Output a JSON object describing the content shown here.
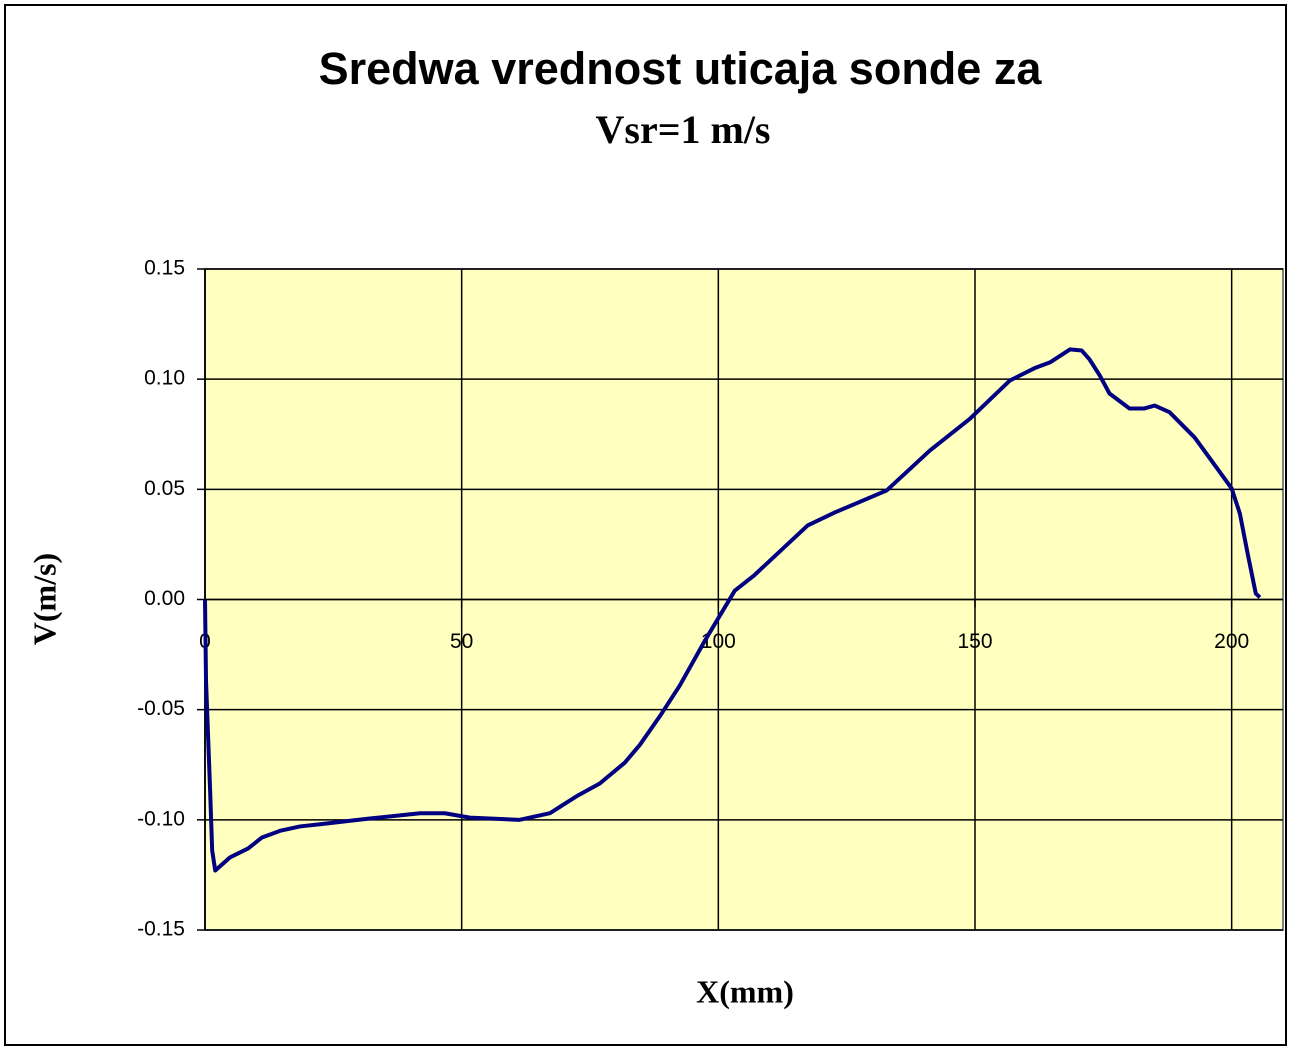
{
  "chart_data": {
    "type": "line",
    "title": "Sredwa vrednost uticaja sonde za",
    "subtitle": "Vsr=1 m/s",
    "x_label": "X(mm)",
    "y_label": "V(m/s)",
    "xlim": [
      0,
      210
    ],
    "ylim": [
      -0.15,
      0.15
    ],
    "xticks": [
      0,
      50,
      100,
      150,
      200
    ],
    "yticks": [
      -0.15,
      {
        "value": -0.1,
        "label": "-0.10"
      },
      -0.05,
      {
        "value": 0,
        "label": "0.00"
      },
      0.05,
      {
        "value": 0.1,
        "label": "0.10"
      },
      0.15
    ],
    "grid": true,
    "plot_background": "#ffffc0",
    "series": [
      {
        "name": "V",
        "color": "#000080",
        "x": [
          0,
          0.2,
          1,
          1.4,
          2,
          4.9,
          8.4,
          11.1,
          14.6,
          18.5,
          22.4,
          32.1,
          41.9,
          46.7,
          51.6,
          61.3,
          67.2,
          72.6,
          76.9,
          81.8,
          84.7,
          88.6,
          92.5,
          97.4,
          103.2,
          107,
          117.4,
          122.7,
          132.8,
          141.2,
          149,
          156.8,
          161.6,
          164.6,
          168.5,
          170.8,
          172.3,
          174.3,
          176.2,
          180.1,
          183,
          185,
          187.9,
          192.8,
          196.7,
          200,
          201.6,
          203.1,
          204.7,
          205.5
        ],
        "values": [
          0,
          -0.037,
          -0.087,
          -0.114,
          -0.123,
          -0.117,
          -0.113,
          -0.108,
          -0.105,
          -0.103,
          -0.102,
          -0.0994,
          -0.097,
          -0.097,
          -0.099,
          -0.1,
          -0.097,
          -0.089,
          -0.0835,
          -0.074,
          -0.066,
          -0.053,
          -0.039,
          -0.0186,
          0.004,
          0.011,
          0.0336,
          0.0395,
          0.0495,
          0.0676,
          0.082,
          0.0994,
          0.105,
          0.1076,
          0.1135,
          0.113,
          0.109,
          0.1017,
          0.0935,
          0.0867,
          0.0867,
          0.088,
          0.085,
          0.0735,
          0.061,
          0.0504,
          0.039,
          0.021,
          0.0027,
          0.001
        ]
      }
    ]
  }
}
